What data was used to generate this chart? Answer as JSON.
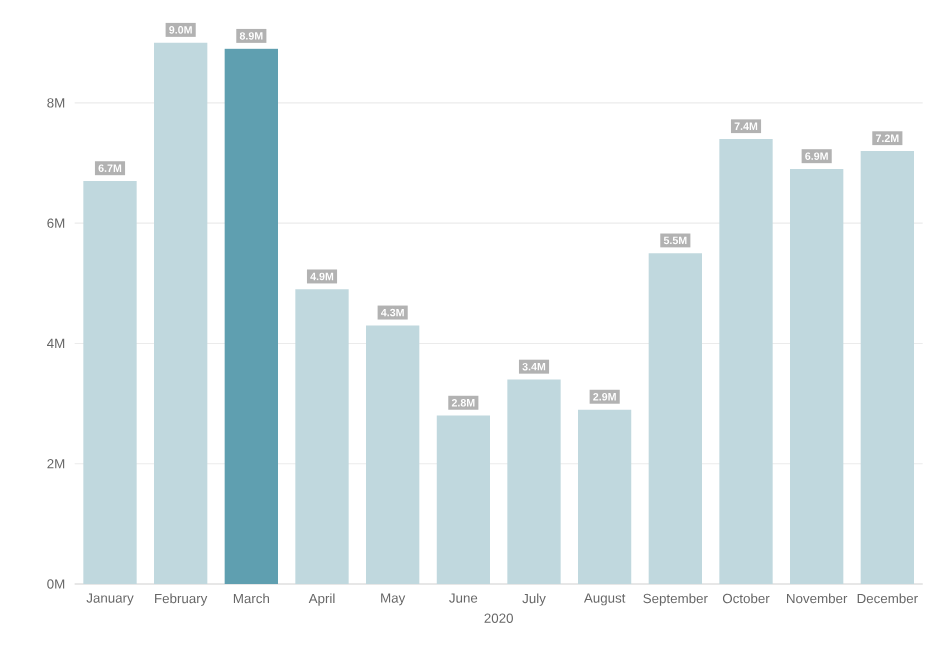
{
  "chart_data": {
    "type": "bar",
    "xlabel": "2020",
    "categories": [
      "January",
      "February",
      "March",
      "April",
      "May",
      "June",
      "July",
      "August",
      "September",
      "October",
      "November",
      "December"
    ],
    "values": [
      6.7,
      9.0,
      8.9,
      4.9,
      4.3,
      2.8,
      3.4,
      2.9,
      5.5,
      7.4,
      6.9,
      7.2
    ],
    "value_labels": [
      "6.7M",
      "9.0M",
      "8.9M",
      "4.9M",
      "4.3M",
      "2.8M",
      "3.4M",
      "2.9M",
      "5.5M",
      "7.4M",
      "6.9M",
      "7.2M"
    ],
    "colors": [
      "#c0d8de",
      "#c0d8de",
      "#5f9fb0",
      "#c0d8de",
      "#c0d8de",
      "#c0d8de",
      "#c0d8de",
      "#c0d8de",
      "#c0d8de",
      "#c0d8de",
      "#c0d8de",
      "#c0d8de"
    ],
    "ylim": [
      0,
      9.4
    ],
    "yticks": [
      {
        "value": 0,
        "label": "0M"
      },
      {
        "value": 2,
        "label": "2M"
      },
      {
        "value": 4,
        "label": "4M"
      },
      {
        "value": 6,
        "label": "6M"
      },
      {
        "value": 8,
        "label": "8M"
      }
    ],
    "grid": "y"
  }
}
